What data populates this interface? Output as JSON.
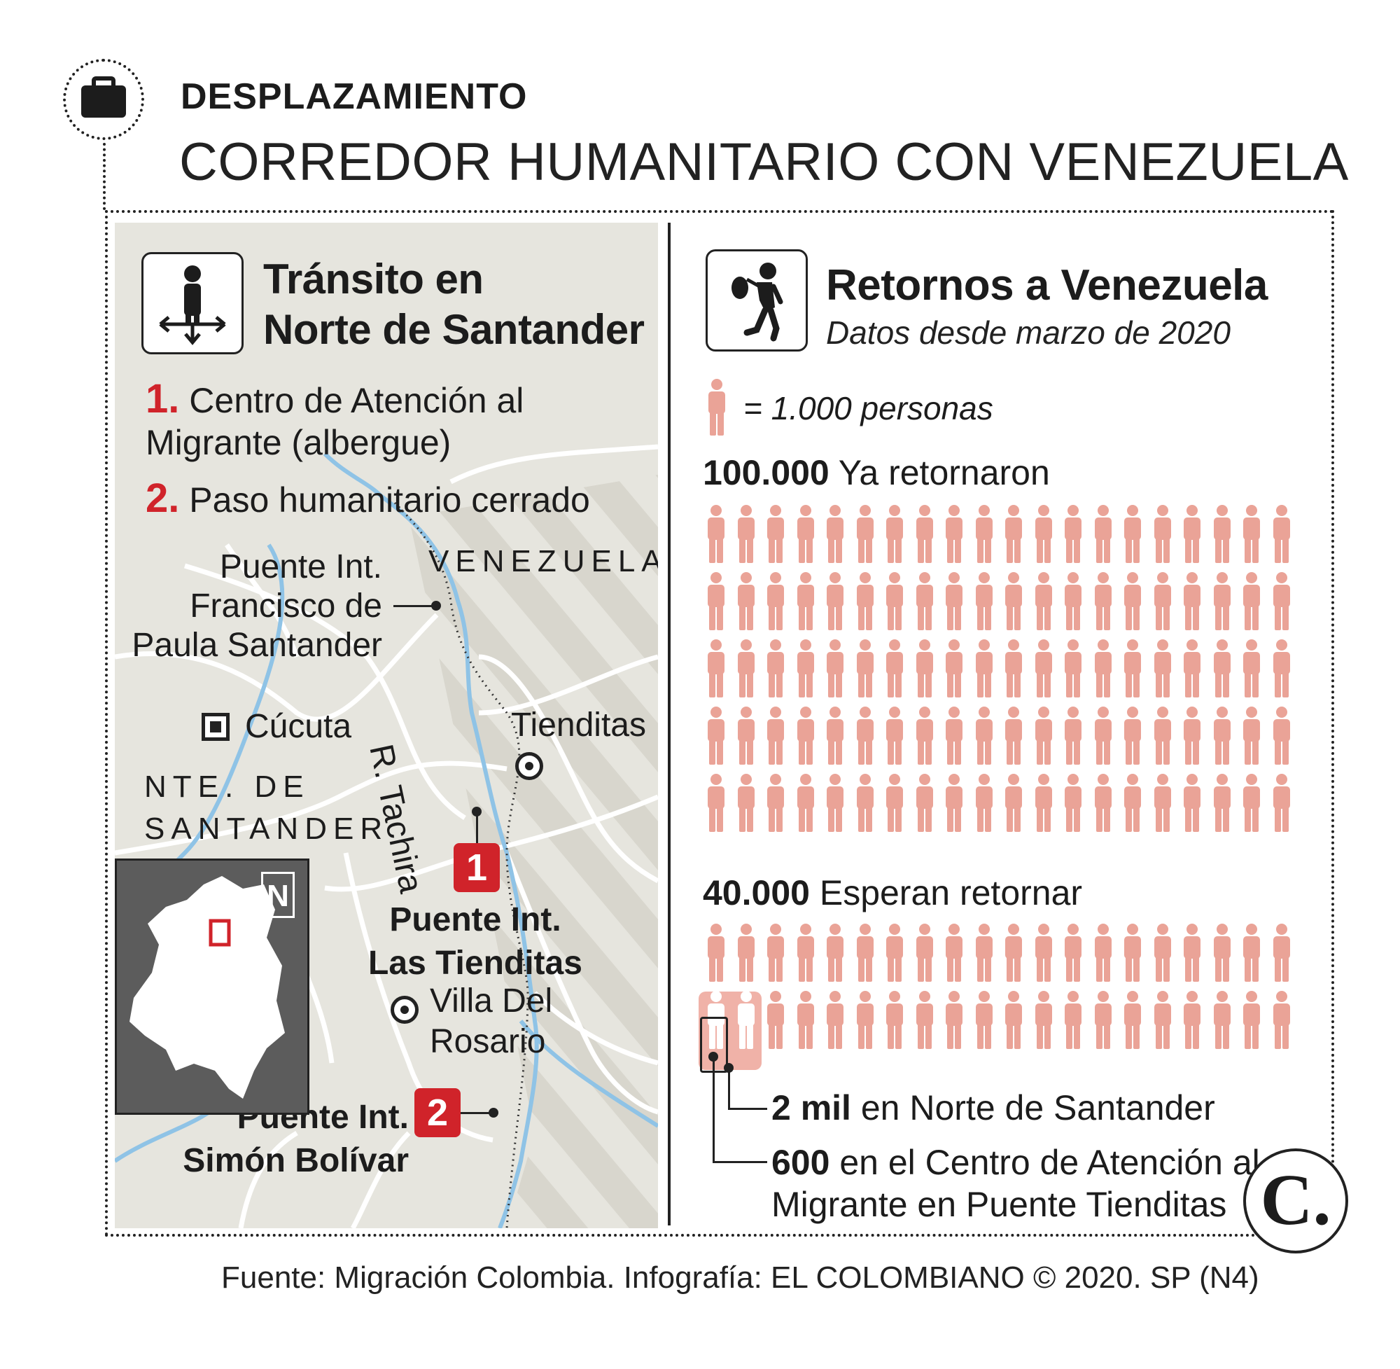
{
  "header": {
    "kicker": "DESPLAZAMIENTO",
    "headline": "CORREDOR HUMANITARIO CON VENEZUELA",
    "icon": "briefcase-icon"
  },
  "left_panel": {
    "icon": "person-crossroads-icon",
    "title_line1": "Tránsito en",
    "title_line2": "Norte de Santander",
    "legend": [
      {
        "num": "1.",
        "text_line1": "Centro de Atención al",
        "text_line2": "Migrante (albergue)"
      },
      {
        "num": "2.",
        "text_line1": "Paso humanitario cerrado"
      }
    ],
    "map": {
      "country_label": "VENEZUELA",
      "bridge1_line1": "Puente Int.",
      "bridge1_line2": "Francisco de",
      "bridge1_line3": "Paula Santander",
      "river_label": "R. Tachira",
      "city_cucuta": "Cúcuta",
      "region_line1": "NTE. DE",
      "region_line2": "SANTANDER",
      "city_tienditas": "Tienditas",
      "marker1": "1",
      "bridge_tienditas_line1": "Puente Int.",
      "bridge_tienditas_line2": "Las Tienditas",
      "town_villa_line1": "Villa Del",
      "town_villa_line2": "Rosario",
      "marker2": "2",
      "bridge_bolivar_line1": "Puente Int.",
      "bridge_bolivar_line2": "Simón Bolívar",
      "inset_north": "N",
      "colors": {
        "river": "#8fc3e6",
        "road": "#ffffff",
        "land": "#e6e5de",
        "marker": "#d0232a",
        "inset": "#5c5c5c"
      }
    }
  },
  "right_panel": {
    "icon": "person-carrying-bundle-icon",
    "title": "Retornos a Venezuela",
    "subtitle": "Datos desde marzo de 2020",
    "key_text": "= 1.000 personas",
    "returned": {
      "value": "100.000",
      "label": "Ya retornaron",
      "icon_count": 100
    },
    "waiting": {
      "value": "40.000",
      "label": "Esperan retornar",
      "icon_count": 40
    },
    "notes": [
      {
        "value": "2 mil",
        "text": "en Norte de Santander"
      },
      {
        "value": "600",
        "text_line1": "en el Centro de Atención al",
        "text_line2": "Migrante en Puente Tienditas"
      }
    ],
    "person_color": "#eaa397",
    "highlight_color": "#f0b2a8"
  },
  "logo": "C.",
  "source": "Fuente: Migración Colombia. Infografía: EL COLOMBIANO © 2020. SP (N4)"
}
